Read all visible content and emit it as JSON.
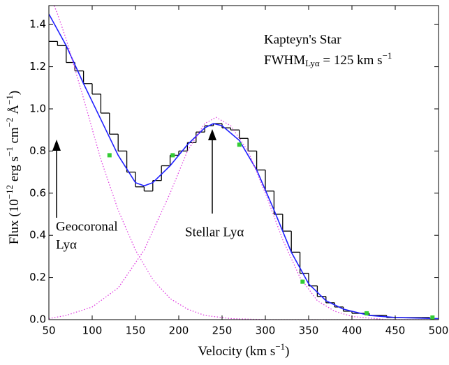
{
  "chart_data": {
    "type": "line",
    "title": "Kapteyn's Star",
    "subtitle": {
      "text": "FWHM",
      "sub": "Lyα",
      "rest": " = 125 km s",
      "sup": "−1"
    },
    "x_label": [
      {
        "text": "Velocity (km s"
      },
      {
        "text": "−1",
        "sup": true
      },
      {
        "text": ")"
      }
    ],
    "y_label": [
      {
        "text": "Flux (10"
      },
      {
        "text": "−12",
        "sup": true
      },
      {
        "text": " erg s"
      },
      {
        "text": "−1",
        "sup": true
      },
      {
        "text": " cm"
      },
      {
        "text": "−2",
        "sup": true
      },
      {
        "text": " Å"
      },
      {
        "text": "−1",
        "sup": true
      },
      {
        "text": ")"
      }
    ],
    "annotations": [
      "Geocoronal",
      "Lyα",
      "Stellar Lyα"
    ],
    "xlim": [
      50,
      500
    ],
    "ylim": [
      0,
      1.49
    ],
    "xticks": [
      50,
      100,
      150,
      200,
      250,
      300,
      350,
      400,
      450,
      500
    ],
    "yticks": [
      {
        "value": 0,
        "label": "0.0"
      },
      0.2,
      0.4,
      0.6,
      0.8,
      {
        "value": 1,
        "label": "1.0"
      },
      1.2,
      1.4
    ],
    "observed": {
      "color": "#000000",
      "x": [
        50,
        60,
        70,
        80,
        90,
        100,
        110,
        120,
        130,
        140,
        150,
        160,
        170,
        180,
        190,
        200,
        210,
        220,
        230,
        240,
        250,
        260,
        270,
        280,
        290,
        300,
        310,
        320,
        330,
        340,
        350,
        360,
        370,
        380,
        390,
        400,
        420,
        440,
        460,
        480
      ],
      "values": [
        1.32,
        1.3,
        1.22,
        1.18,
        1.12,
        1.07,
        0.98,
        0.88,
        0.8,
        0.7,
        0.63,
        0.61,
        0.66,
        0.73,
        0.78,
        0.8,
        0.84,
        0.89,
        0.92,
        0.93,
        0.91,
        0.9,
        0.86,
        0.8,
        0.71,
        0.61,
        0.5,
        0.42,
        0.32,
        0.22,
        0.16,
        0.11,
        0.08,
        0.06,
        0.04,
        0.03,
        0.02,
        0.01,
        0.01,
        0.01
      ]
    },
    "series": [
      {
        "color": "#2020ff",
        "dash": false,
        "x": [
          50,
          70,
          90,
          110,
          130,
          150,
          160,
          170,
          190,
          210,
          230,
          240,
          250,
          270,
          290,
          310,
          330,
          350,
          370,
          390,
          420,
          450,
          500
        ],
        "values": [
          1.45,
          1.3,
          1.12,
          0.95,
          0.78,
          0.65,
          0.635,
          0.65,
          0.73,
          0.83,
          0.91,
          0.93,
          0.92,
          0.85,
          0.71,
          0.52,
          0.32,
          0.17,
          0.09,
          0.05,
          0.02,
          0.01,
          0.005
        ]
      },
      {
        "color": "#e040e0",
        "dash": true,
        "x": [
          50,
          60,
          70,
          90,
          110,
          130,
          150,
          170,
          190,
          210,
          230,
          260,
          300,
          500
        ],
        "values": [
          1.55,
          1.45,
          1.33,
          1.05,
          0.76,
          0.52,
          0.33,
          0.19,
          0.1,
          0.05,
          0.02,
          0.005,
          0,
          0
        ]
      },
      {
        "color": "#e040e0",
        "dash": true,
        "x": [
          50,
          70,
          100,
          130,
          160,
          190,
          210,
          230,
          243,
          260,
          280,
          300,
          320,
          340,
          360,
          380,
          400,
          440,
          500
        ],
        "values": [
          0.005,
          0.02,
          0.06,
          0.15,
          0.33,
          0.6,
          0.8,
          0.93,
          0.96,
          0.92,
          0.8,
          0.6,
          0.38,
          0.2,
          0.09,
          0.04,
          0.015,
          0,
          0
        ]
      }
    ],
    "points": {
      "color": "#33cc33",
      "x": [
        120,
        193,
        270,
        343,
        417,
        493
      ],
      "values": [
        0.78,
        0.78,
        0.83,
        0.18,
        0.03,
        0.01
      ]
    }
  }
}
